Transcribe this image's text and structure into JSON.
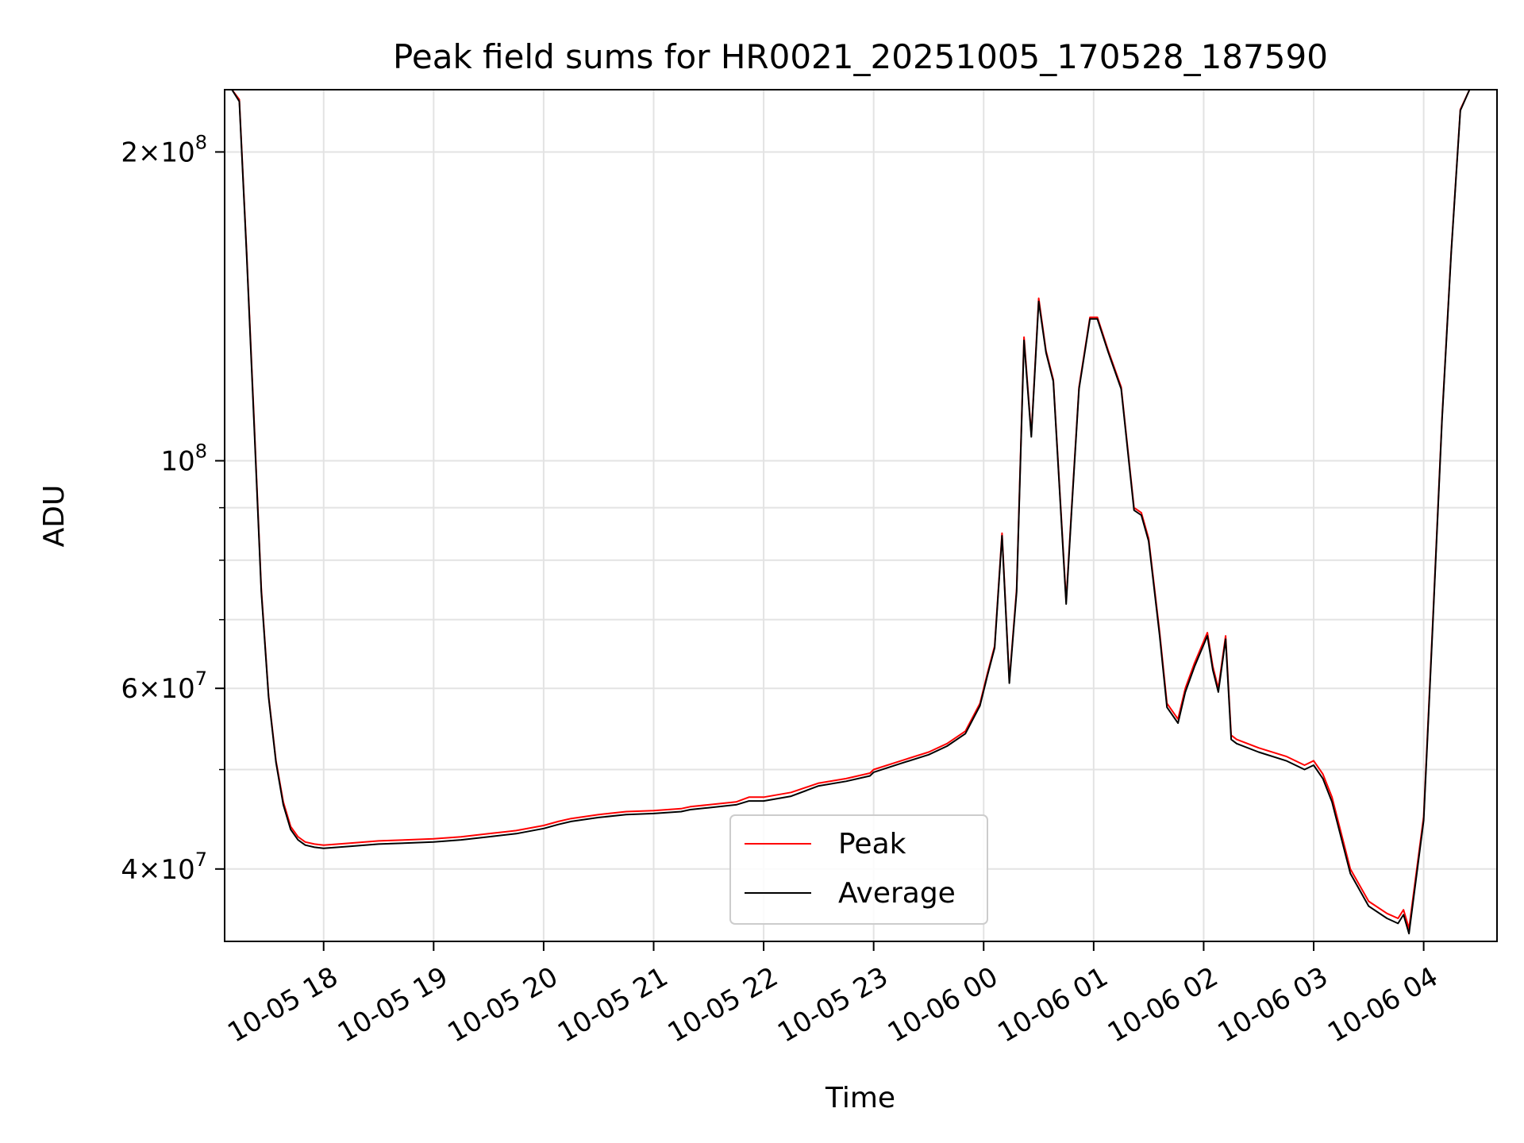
{
  "chart_data": {
    "type": "line",
    "title": "Peak field sums for HR0021_20251005_170528_187590",
    "xlabel": "Time",
    "ylabel": "ADU",
    "y_scale": "log",
    "ylim": [
      34000000,
      230000000
    ],
    "xlim": [
      "2025-10-05 17:06",
      "2025-10-06 04:40"
    ],
    "grid": true,
    "legend_position": "bottom-center",
    "x_ticks": [
      "10-05 18",
      "10-05 19",
      "10-05 20",
      "10-05 21",
      "10-05 22",
      "10-05 23",
      "10-06 00",
      "10-06 01",
      "10-06 02",
      "10-06 03",
      "10-06 04"
    ],
    "x_tick_times": [
      "2025-10-05 18:00",
      "2025-10-05 19:00",
      "2025-10-05 20:00",
      "2025-10-05 21:00",
      "2025-10-05 22:00",
      "2025-10-05 23:00",
      "2025-10-06 00:00",
      "2025-10-06 01:00",
      "2025-10-06 02:00",
      "2025-10-06 03:00",
      "2025-10-06 04:00"
    ],
    "y_ticks": [
      {
        "value": 40000000,
        "mantissa": "4",
        "exp": "7"
      },
      {
        "value": 60000000,
        "mantissa": "6",
        "exp": "7"
      },
      {
        "value": 100000000,
        "mantissa": "",
        "exp": "8"
      },
      {
        "value": 200000000,
        "mantissa": "2",
        "exp": "8"
      }
    ],
    "y_minor_ticks": [
      50000000,
      70000000,
      80000000,
      90000000
    ],
    "series": [
      {
        "name": "Peak",
        "color": "#ff0000",
        "x": [
          "2025-10-05 17:06",
          "2025-10-05 17:10",
          "2025-10-05 17:14",
          "2025-10-05 17:18",
          "2025-10-05 17:22",
          "2025-10-05 17:26",
          "2025-10-05 17:30",
          "2025-10-05 17:34",
          "2025-10-05 17:38",
          "2025-10-05 17:42",
          "2025-10-05 17:46",
          "2025-10-05 17:50",
          "2025-10-05 17:55",
          "2025-10-05 18:00",
          "2025-10-05 18:15",
          "2025-10-05 18:30",
          "2025-10-05 18:45",
          "2025-10-05 19:00",
          "2025-10-05 19:15",
          "2025-10-05 19:30",
          "2025-10-05 19:45",
          "2025-10-05 20:00",
          "2025-10-05 20:08",
          "2025-10-05 20:15",
          "2025-10-05 20:30",
          "2025-10-05 20:45",
          "2025-10-05 21:00",
          "2025-10-05 21:15",
          "2025-10-05 21:20",
          "2025-10-05 21:30",
          "2025-10-05 21:45",
          "2025-10-05 21:52",
          "2025-10-05 21:56",
          "2025-10-05 22:00",
          "2025-10-05 22:15",
          "2025-10-05 22:30",
          "2025-10-05 22:45",
          "2025-10-05 22:58",
          "2025-10-05 23:00",
          "2025-10-05 23:15",
          "2025-10-05 23:30",
          "2025-10-05 23:40",
          "2025-10-05 23:50",
          "2025-10-05 23:58",
          "2025-10-06 00:02",
          "2025-10-06 00:06",
          "2025-10-06 00:10",
          "2025-10-06 00:14",
          "2025-10-06 00:18",
          "2025-10-06 00:22",
          "2025-10-06 00:26",
          "2025-10-06 00:30",
          "2025-10-06 00:34",
          "2025-10-06 00:38",
          "2025-10-06 00:45",
          "2025-10-06 00:48",
          "2025-10-06 00:52",
          "2025-10-06 00:58",
          "2025-10-06 01:02",
          "2025-10-06 01:08",
          "2025-10-06 01:15",
          "2025-10-06 01:22",
          "2025-10-06 01:26",
          "2025-10-06 01:30",
          "2025-10-06 01:36",
          "2025-10-06 01:40",
          "2025-10-06 01:46",
          "2025-10-06 01:50",
          "2025-10-06 01:55",
          "2025-10-06 02:02",
          "2025-10-06 02:05",
          "2025-10-06 02:08",
          "2025-10-06 02:12",
          "2025-10-06 02:15",
          "2025-10-06 02:18",
          "2025-10-06 02:30",
          "2025-10-06 02:45",
          "2025-10-06 02:55",
          "2025-10-06 03:00",
          "2025-10-06 03:05",
          "2025-10-06 03:10",
          "2025-10-06 03:20",
          "2025-10-06 03:30",
          "2025-10-06 03:40",
          "2025-10-06 03:46",
          "2025-10-06 03:49",
          "2025-10-06 03:52",
          "2025-10-06 04:00",
          "2025-10-06 04:05",
          "2025-10-06 04:10",
          "2025-10-06 04:15",
          "2025-10-06 04:20",
          "2025-10-06 04:25",
          "2025-10-06 04:30",
          "2025-10-06 04:40"
        ],
        "values": [
          230000000,
          230000000,
          225000000,
          160000000,
          110000000,
          75000000,
          59000000,
          51000000,
          46500000,
          44000000,
          43000000,
          42500000,
          42300000,
          42200000,
          42400000,
          42600000,
          42700000,
          42800000,
          43000000,
          43300000,
          43600000,
          44100000,
          44500000,
          44800000,
          45200000,
          45500000,
          45600000,
          45800000,
          46000000,
          46200000,
          46500000,
          47000000,
          47000000,
          47000000,
          47500000,
          48500000,
          49000000,
          49600000,
          50000000,
          51000000,
          52000000,
          53000000,
          54500000,
          58000000,
          62000000,
          66000000,
          85000000,
          61000000,
          75000000,
          132000000,
          106000000,
          144000000,
          128000000,
          120000000,
          73000000,
          90000000,
          118000000,
          138000000,
          138000000,
          128000000,
          118000000,
          90000000,
          89000000,
          84000000,
          68000000,
          58000000,
          56000000,
          60000000,
          63500000,
          68000000,
          63000000,
          60000000,
          67500000,
          54000000,
          53500000,
          52500000,
          51500000,
          50500000,
          51000000,
          49500000,
          47000000,
          40000000,
          37200000,
          36200000,
          35800000,
          36500000,
          35000000,
          45000000,
          70000000,
          110000000,
          160000000,
          220000000,
          230000000,
          230000000,
          230000000
        ]
      },
      {
        "name": "Average",
        "color": "#000000",
        "x": [
          "2025-10-05 17:06",
          "2025-10-05 17:10",
          "2025-10-05 17:14",
          "2025-10-05 17:18",
          "2025-10-05 17:22",
          "2025-10-05 17:26",
          "2025-10-05 17:30",
          "2025-10-05 17:34",
          "2025-10-05 17:38",
          "2025-10-05 17:42",
          "2025-10-05 17:46",
          "2025-10-05 17:50",
          "2025-10-05 17:55",
          "2025-10-05 18:00",
          "2025-10-05 18:15",
          "2025-10-05 18:30",
          "2025-10-05 18:45",
          "2025-10-05 19:00",
          "2025-10-05 19:15",
          "2025-10-05 19:30",
          "2025-10-05 19:45",
          "2025-10-05 20:00",
          "2025-10-05 20:08",
          "2025-10-05 20:15",
          "2025-10-05 20:30",
          "2025-10-05 20:45",
          "2025-10-05 21:00",
          "2025-10-05 21:15",
          "2025-10-05 21:20",
          "2025-10-05 21:30",
          "2025-10-05 21:45",
          "2025-10-05 21:52",
          "2025-10-05 21:56",
          "2025-10-05 22:00",
          "2025-10-05 22:15",
          "2025-10-05 22:30",
          "2025-10-05 22:45",
          "2025-10-05 22:58",
          "2025-10-05 23:00",
          "2025-10-05 23:15",
          "2025-10-05 23:30",
          "2025-10-05 23:40",
          "2025-10-05 23:50",
          "2025-10-05 23:58",
          "2025-10-06 00:02",
          "2025-10-06 00:06",
          "2025-10-06 00:10",
          "2025-10-06 00:14",
          "2025-10-06 00:18",
          "2025-10-06 00:22",
          "2025-10-06 00:26",
          "2025-10-06 00:30",
          "2025-10-06 00:34",
          "2025-10-06 00:38",
          "2025-10-06 00:45",
          "2025-10-06 00:48",
          "2025-10-06 00:52",
          "2025-10-06 00:58",
          "2025-10-06 01:02",
          "2025-10-06 01:08",
          "2025-10-06 01:15",
          "2025-10-06 01:22",
          "2025-10-06 01:26",
          "2025-10-06 01:30",
          "2025-10-06 01:36",
          "2025-10-06 01:40",
          "2025-10-06 01:46",
          "2025-10-06 01:50",
          "2025-10-06 01:55",
          "2025-10-06 02:02",
          "2025-10-06 02:05",
          "2025-10-06 02:08",
          "2025-10-06 02:12",
          "2025-10-06 02:15",
          "2025-10-06 02:18",
          "2025-10-06 02:30",
          "2025-10-06 02:45",
          "2025-10-06 02:55",
          "2025-10-06 03:00",
          "2025-10-06 03:05",
          "2025-10-06 03:10",
          "2025-10-06 03:20",
          "2025-10-06 03:30",
          "2025-10-06 03:40",
          "2025-10-06 03:46",
          "2025-10-06 03:49",
          "2025-10-06 03:52",
          "2025-10-06 04:00",
          "2025-10-06 04:05",
          "2025-10-06 04:10",
          "2025-10-06 04:15",
          "2025-10-06 04:20",
          "2025-10-06 04:25",
          "2025-10-06 04:30",
          "2025-10-06 04:40"
        ],
        "values": [
          230000000,
          230000000,
          224000000,
          159000000,
          109000000,
          74500000,
          58800000,
          50800000,
          46200000,
          43700000,
          42700000,
          42200000,
          42000000,
          41900000,
          42100000,
          42300000,
          42400000,
          42500000,
          42700000,
          43000000,
          43300000,
          43800000,
          44200000,
          44500000,
          44900000,
          45200000,
          45300000,
          45500000,
          45700000,
          45900000,
          46200000,
          46600000,
          46600000,
          46600000,
          47100000,
          48200000,
          48700000,
          49300000,
          49700000,
          50700000,
          51700000,
          52700000,
          54200000,
          57700000,
          61700000,
          65700000,
          84500000,
          60700000,
          74500000,
          131000000,
          105500000,
          143000000,
          127500000,
          119500000,
          72500000,
          89500000,
          117500000,
          137500000,
          137500000,
          127500000,
          117500000,
          89500000,
          88500000,
          83500000,
          67500000,
          57500000,
          55500000,
          59500000,
          63000000,
          67500000,
          62500000,
          59500000,
          67000000,
          53500000,
          53000000,
          52000000,
          51000000,
          50000000,
          50500000,
          49000000,
          46500000,
          39600000,
          36800000,
          35800000,
          35400000,
          36100000,
          34600000,
          44600000,
          69500000,
          109500000,
          159500000,
          219500000,
          230000000,
          230000000,
          230000000
        ]
      }
    ]
  }
}
